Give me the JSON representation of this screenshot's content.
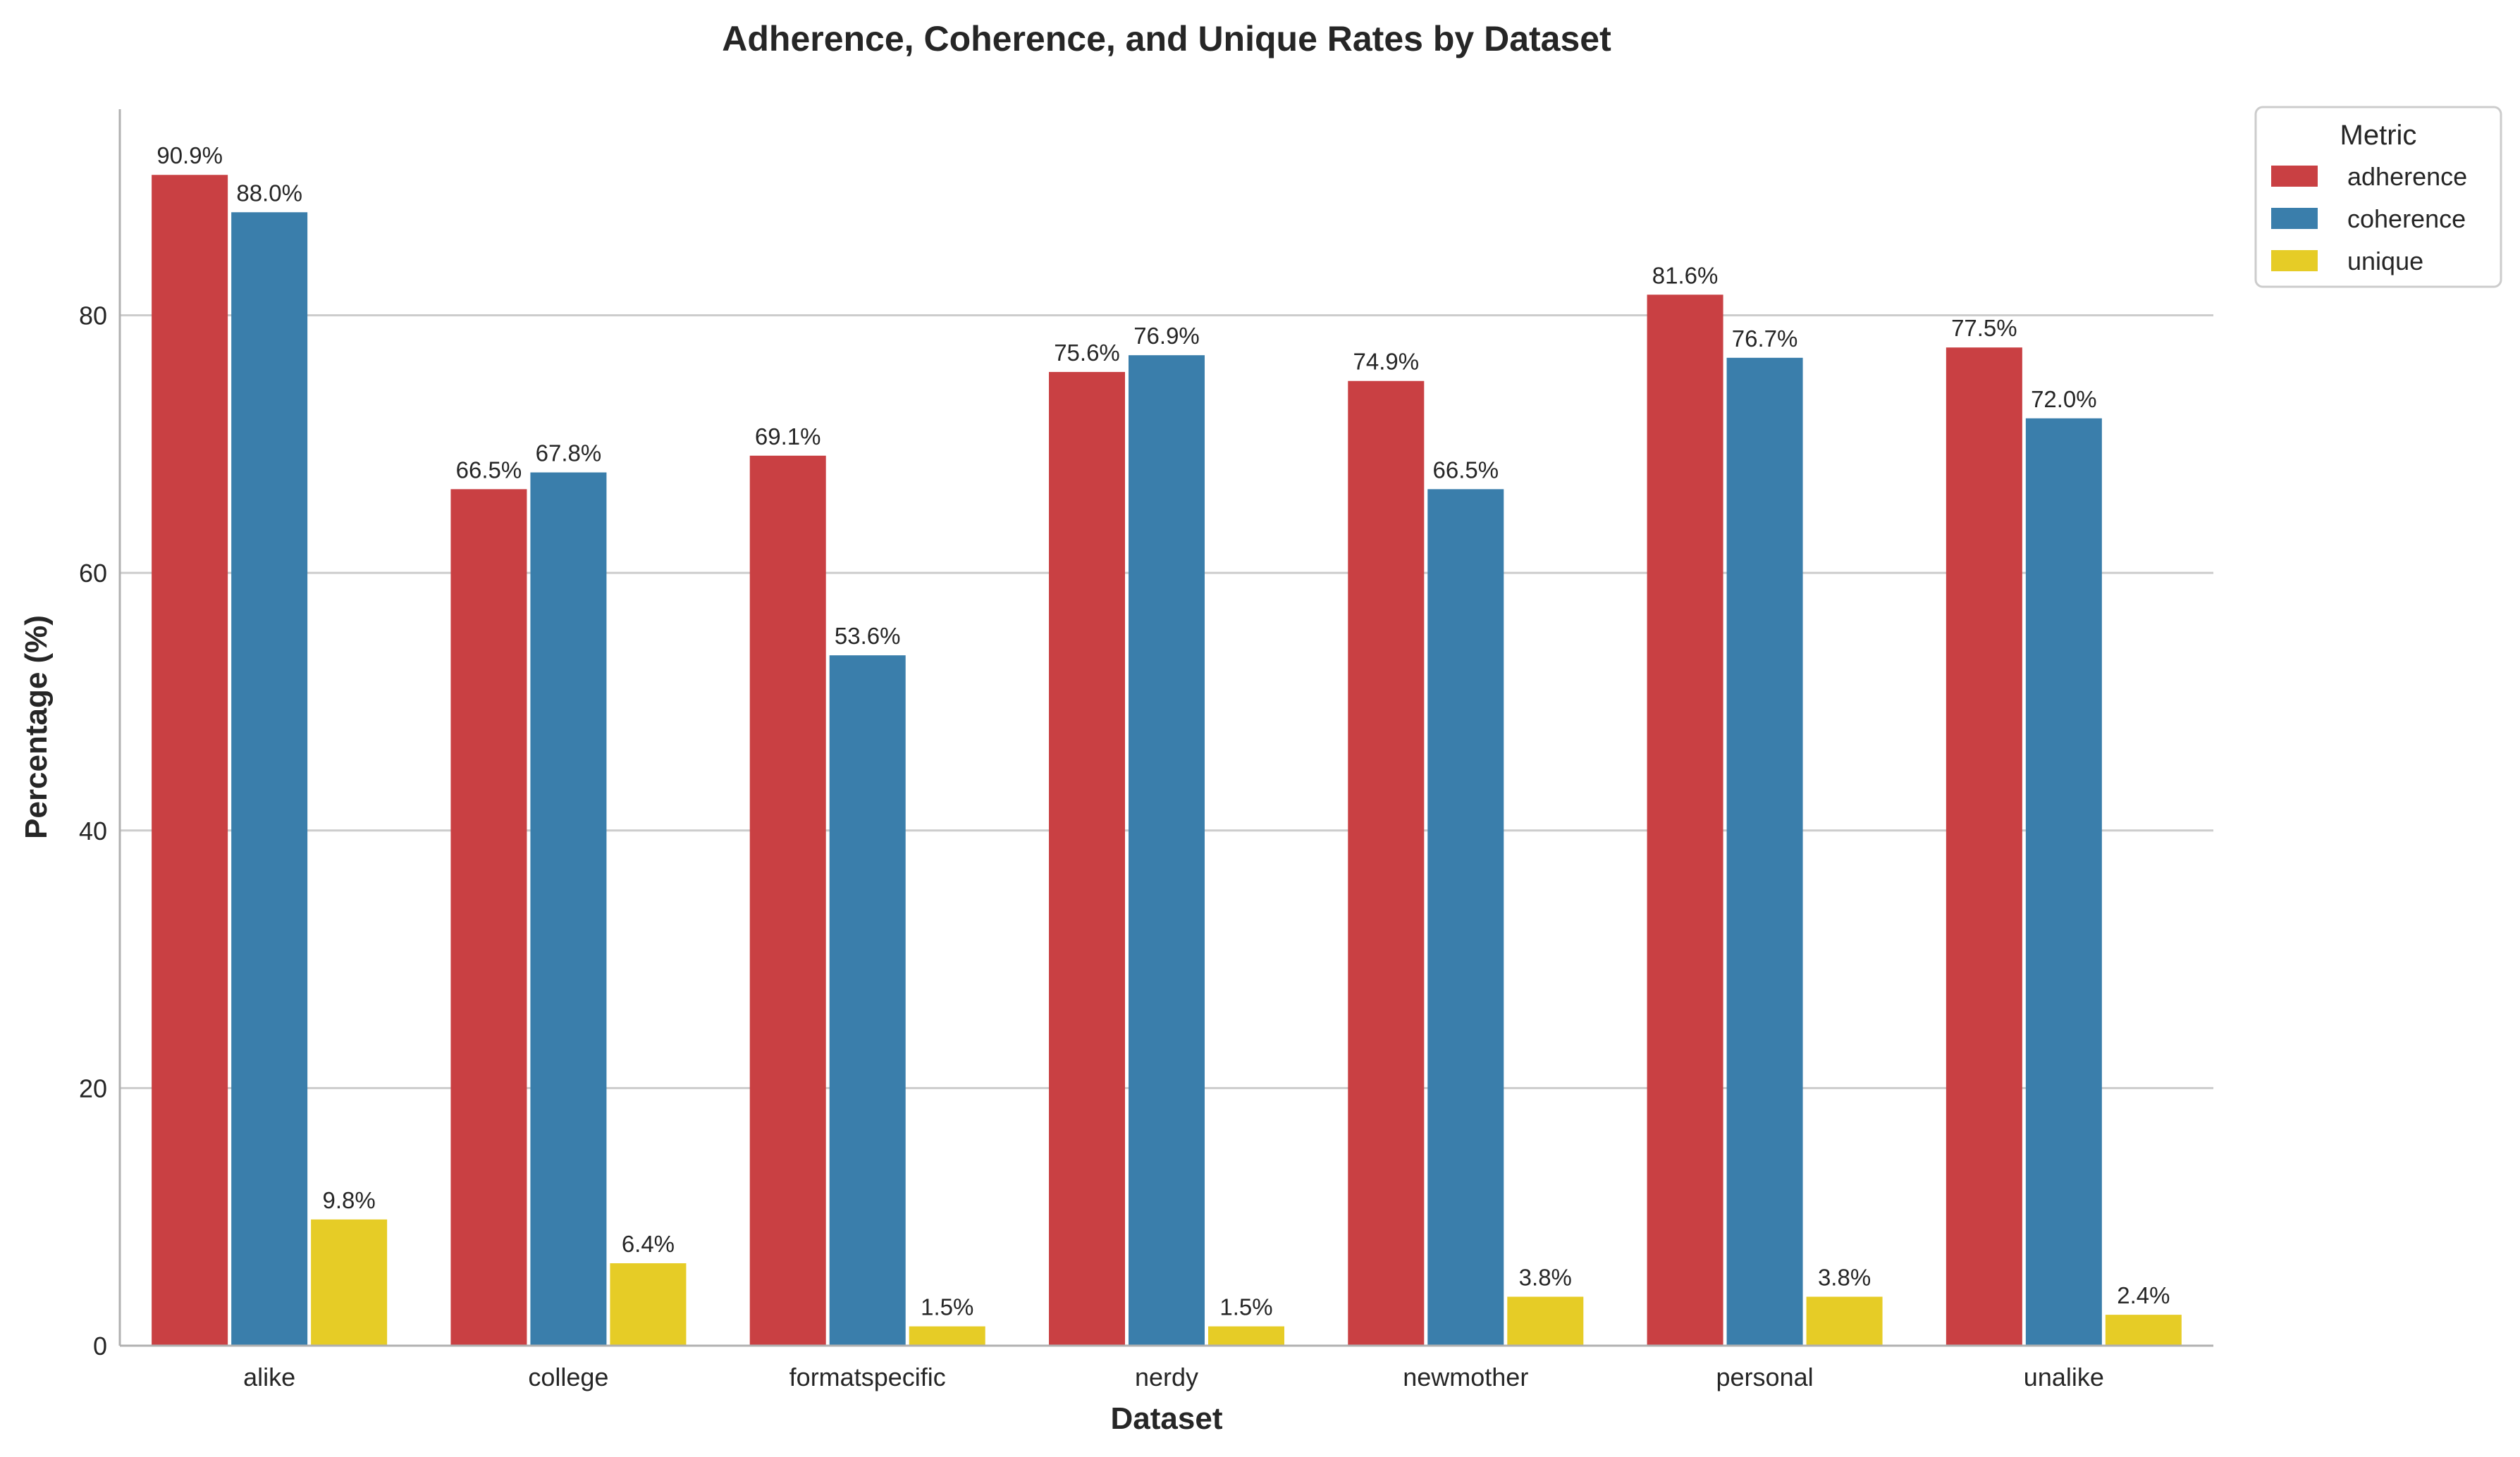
{
  "chart_data": {
    "type": "bar",
    "title": "Adherence, Coherence, and Unique Rates by Dataset",
    "xlabel": "Dataset",
    "ylabel": "Percentage (%)",
    "ylim": [
      0,
      96
    ],
    "yticks": [
      0,
      20,
      40,
      60,
      80
    ],
    "grid": "horizontal",
    "legend": {
      "title": "Metric",
      "placement": "outside-top-right"
    },
    "categories": [
      "alike",
      "college",
      "formatspecific",
      "nerdy",
      "newmother",
      "personal",
      "unalike"
    ],
    "series": [
      {
        "name": "adherence",
        "color": "#c94043",
        "values": [
          90.9,
          66.5,
          69.1,
          75.6,
          74.9,
          81.6,
          77.5
        ],
        "labels": [
          "90.9%",
          "66.5%",
          "69.1%",
          "75.6%",
          "74.9%",
          "81.6%",
          "77.5%"
        ]
      },
      {
        "name": "coherence",
        "color": "#3a7eab",
        "values": [
          88.0,
          67.8,
          53.6,
          76.9,
          66.5,
          76.7,
          72.0
        ],
        "labels": [
          "88.0%",
          "67.8%",
          "53.6%",
          "76.9%",
          "66.5%",
          "76.7%",
          "72.0%"
        ]
      },
      {
        "name": "unique",
        "color": "#e6cc26",
        "values": [
          9.8,
          6.4,
          1.5,
          1.5,
          3.8,
          3.8,
          2.4
        ],
        "labels": [
          "9.8%",
          "6.4%",
          "1.5%",
          "1.5%",
          "3.8%",
          "3.8%",
          "2.4%"
        ]
      }
    ]
  }
}
